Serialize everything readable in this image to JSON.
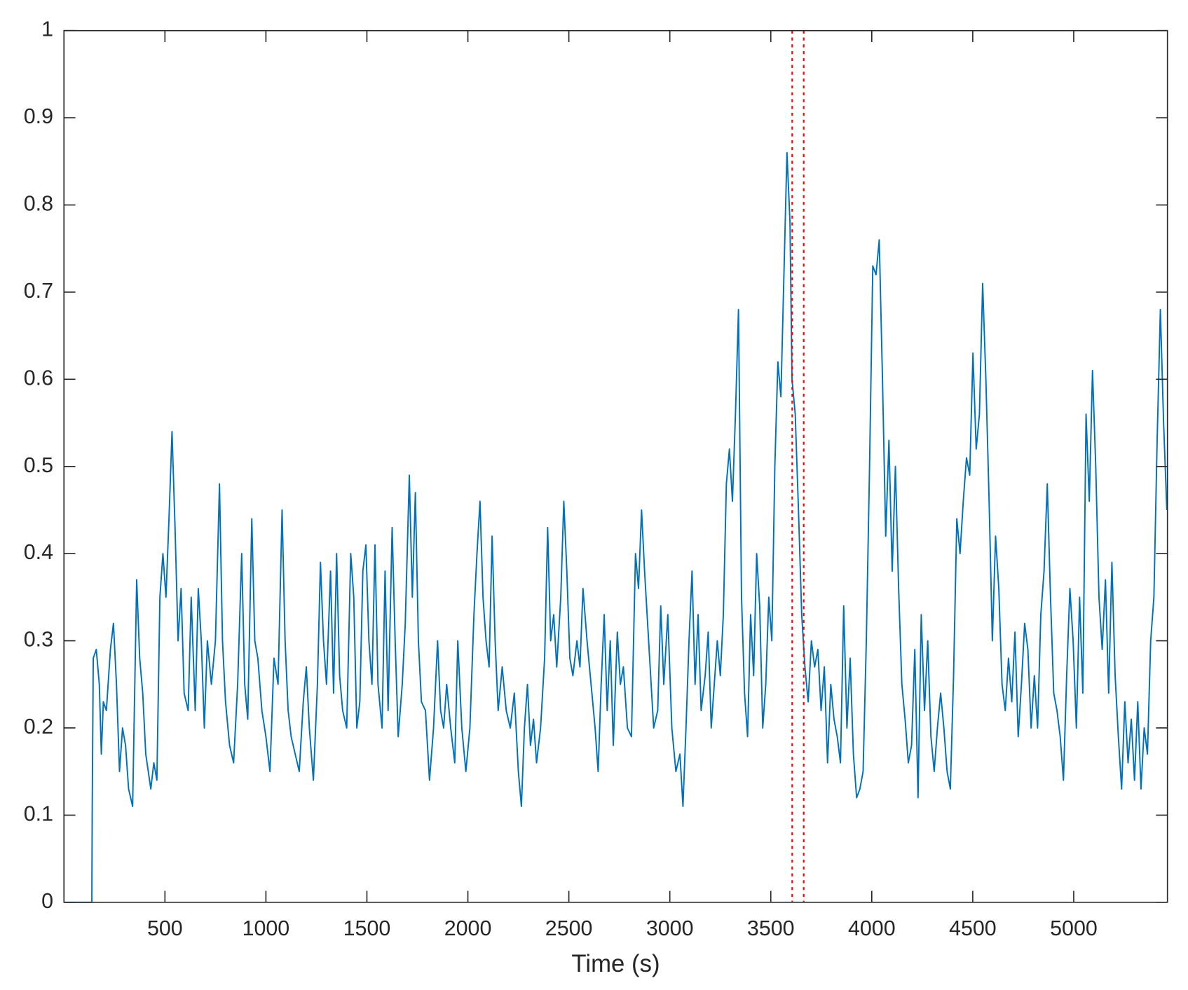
{
  "chart_data": {
    "type": "line",
    "xlabel": "Time (s)",
    "x": [
      0,
      138,
      140,
      145,
      160,
      175,
      185,
      195,
      210,
      230,
      245,
      260,
      275,
      290,
      305,
      320,
      340,
      360,
      375,
      390,
      405,
      430,
      445,
      460,
      475,
      490,
      505,
      520,
      535,
      550,
      565,
      580,
      595,
      615,
      630,
      650,
      665,
      680,
      695,
      710,
      730,
      750,
      770,
      785,
      800,
      820,
      840,
      860,
      880,
      895,
      910,
      930,
      945,
      960,
      980,
      1000,
      1020,
      1040,
      1060,
      1080,
      1095,
      1110,
      1125,
      1145,
      1165,
      1185,
      1200,
      1215,
      1235,
      1255,
      1270,
      1285,
      1300,
      1320,
      1335,
      1350,
      1365,
      1380,
      1400,
      1420,
      1435,
      1450,
      1465,
      1480,
      1495,
      1510,
      1525,
      1540,
      1555,
      1575,
      1590,
      1605,
      1625,
      1640,
      1655,
      1675,
      1690,
      1710,
      1725,
      1740,
      1755,
      1770,
      1790,
      1810,
      1830,
      1850,
      1865,
      1880,
      1895,
      1915,
      1935,
      1950,
      1970,
      1990,
      2010,
      2030,
      2045,
      2060,
      2075,
      2090,
      2105,
      2120,
      2135,
      2150,
      2170,
      2190,
      2210,
      2230,
      2250,
      2265,
      2280,
      2295,
      2310,
      2325,
      2340,
      2360,
      2380,
      2395,
      2410,
      2425,
      2440,
      2460,
      2475,
      2490,
      2505,
      2520,
      2540,
      2555,
      2570,
      2590,
      2610,
      2630,
      2645,
      2660,
      2675,
      2690,
      2705,
      2720,
      2740,
      2755,
      2770,
      2790,
      2810,
      2830,
      2845,
      2860,
      2875,
      2890,
      2905,
      2920,
      2940,
      2955,
      2970,
      2990,
      3010,
      3030,
      3050,
      3065,
      3080,
      3095,
      3110,
      3125,
      3140,
      3155,
      3175,
      3190,
      3205,
      3220,
      3235,
      3250,
      3265,
      3280,
      3295,
      3310,
      3325,
      3340,
      3355,
      3370,
      3385,
      3400,
      3415,
      3430,
      3445,
      3460,
      3475,
      3490,
      3505,
      3520,
      3535,
      3550,
      3565,
      3580,
      3595,
      3605,
      3621,
      3637,
      3653,
      3669,
      3685,
      3701,
      3717,
      3733,
      3749,
      3765,
      3781,
      3797,
      3813,
      3829,
      3845,
      3861,
      3877,
      3893,
      3909,
      3925,
      3941,
      3957,
      3973,
      3989,
      4005,
      4021,
      4037,
      4053,
      4069,
      4085,
      4101,
      4117,
      4133,
      4149,
      4165,
      4181,
      4197,
      4213,
      4229,
      4245,
      4261,
      4277,
      4293,
      4309,
      4325,
      4341,
      4357,
      4373,
      4389,
      4405,
      4421,
      4437,
      4453,
      4469,
      4485,
      4501,
      4517,
      4533,
      4549,
      4565,
      4581,
      4597,
      4613,
      4629,
      4645,
      4661,
      4677,
      4693,
      4709,
      4725,
      4741,
      4757,
      4773,
      4789,
      4805,
      4821,
      4837,
      4853,
      4869,
      4885,
      4901,
      4917,
      4933,
      4949,
      4965,
      4981,
      4997,
      5013,
      5029,
      5045,
      5061,
      5077,
      5093,
      5109,
      5125,
      5141,
      5157,
      5173,
      5189,
      5205,
      5221,
      5237,
      5253,
      5269,
      5285,
      5301,
      5317,
      5333,
      5349,
      5365,
      5381,
      5397,
      5413,
      5429,
      5445,
      5461
    ],
    "series": [
      {
        "color": "#0072bd",
        "values": [
          0,
          0,
          0.11,
          0.28,
          0.29,
          0.25,
          0.17,
          0.23,
          0.22,
          0.29,
          0.32,
          0.25,
          0.15,
          0.2,
          0.18,
          0.13,
          0.11,
          0.37,
          0.28,
          0.24,
          0.17,
          0.13,
          0.16,
          0.14,
          0.35,
          0.4,
          0.35,
          0.44,
          0.54,
          0.43,
          0.3,
          0.36,
          0.24,
          0.22,
          0.35,
          0.22,
          0.36,
          0.3,
          0.2,
          0.3,
          0.25,
          0.3,
          0.48,
          0.3,
          0.23,
          0.18,
          0.16,
          0.25,
          0.4,
          0.25,
          0.21,
          0.44,
          0.3,
          0.28,
          0.22,
          0.19,
          0.15,
          0.28,
          0.25,
          0.45,
          0.3,
          0.22,
          0.19,
          0.17,
          0.15,
          0.23,
          0.27,
          0.2,
          0.14,
          0.25,
          0.39,
          0.3,
          0.25,
          0.38,
          0.24,
          0.4,
          0.26,
          0.22,
          0.2,
          0.4,
          0.35,
          0.2,
          0.23,
          0.38,
          0.41,
          0.3,
          0.25,
          0.41,
          0.25,
          0.2,
          0.38,
          0.22,
          0.43,
          0.3,
          0.19,
          0.25,
          0.32,
          0.49,
          0.35,
          0.47,
          0.3,
          0.23,
          0.22,
          0.14,
          0.2,
          0.3,
          0.22,
          0.2,
          0.25,
          0.2,
          0.16,
          0.3,
          0.2,
          0.15,
          0.2,
          0.33,
          0.4,
          0.46,
          0.35,
          0.3,
          0.27,
          0.42,
          0.3,
          0.22,
          0.27,
          0.22,
          0.2,
          0.24,
          0.15,
          0.11,
          0.2,
          0.25,
          0.18,
          0.21,
          0.16,
          0.2,
          0.28,
          0.43,
          0.3,
          0.33,
          0.27,
          0.35,
          0.46,
          0.38,
          0.28,
          0.26,
          0.3,
          0.27,
          0.36,
          0.3,
          0.25,
          0.2,
          0.15,
          0.25,
          0.33,
          0.22,
          0.3,
          0.18,
          0.31,
          0.25,
          0.27,
          0.2,
          0.19,
          0.4,
          0.36,
          0.45,
          0.38,
          0.32,
          0.26,
          0.2,
          0.22,
          0.34,
          0.25,
          0.33,
          0.2,
          0.15,
          0.17,
          0.11,
          0.2,
          0.3,
          0.38,
          0.25,
          0.33,
          0.22,
          0.26,
          0.31,
          0.2,
          0.25,
          0.3,
          0.26,
          0.33,
          0.48,
          0.52,
          0.46,
          0.56,
          0.68,
          0.35,
          0.24,
          0.19,
          0.33,
          0.26,
          0.4,
          0.34,
          0.2,
          0.25,
          0.35,
          0.3,
          0.5,
          0.62,
          0.58,
          0.72,
          0.86,
          0.78,
          0.6,
          0.56,
          0.45,
          0.33,
          0.27,
          0.23,
          0.3,
          0.27,
          0.29,
          0.22,
          0.27,
          0.16,
          0.25,
          0.21,
          0.19,
          0.16,
          0.34,
          0.2,
          0.28,
          0.17,
          0.12,
          0.13,
          0.15,
          0.3,
          0.5,
          0.73,
          0.72,
          0.76,
          0.6,
          0.42,
          0.53,
          0.38,
          0.5,
          0.36,
          0.25,
          0.21,
          0.16,
          0.18,
          0.29,
          0.12,
          0.33,
          0.22,
          0.3,
          0.19,
          0.15,
          0.2,
          0.24,
          0.2,
          0.15,
          0.13,
          0.26,
          0.44,
          0.4,
          0.46,
          0.51,
          0.49,
          0.63,
          0.52,
          0.56,
          0.71,
          0.6,
          0.46,
          0.3,
          0.42,
          0.36,
          0.25,
          0.22,
          0.28,
          0.23,
          0.31,
          0.19,
          0.25,
          0.32,
          0.29,
          0.2,
          0.26,
          0.2,
          0.33,
          0.38,
          0.48,
          0.35,
          0.24,
          0.22,
          0.19,
          0.14,
          0.26,
          0.36,
          0.3,
          0.2,
          0.35,
          0.24,
          0.56,
          0.46,
          0.61,
          0.5,
          0.35,
          0.29,
          0.37,
          0.24,
          0.39,
          0.26,
          0.19,
          0.13,
          0.23,
          0.16,
          0.21,
          0.14,
          0.23,
          0.13,
          0.2,
          0.17,
          0.3,
          0.35,
          0.53,
          0.68,
          0.55,
          0.45
        ]
      }
    ],
    "reference_lines": {
      "x": [
        3606,
        3663
      ],
      "color": "#ff0000",
      "style": "dotted"
    },
    "xlim": [
      0,
      5464
    ],
    "xticks": [
      500,
      1000,
      1500,
      2000,
      2500,
      3000,
      3500,
      4000,
      4500,
      5000
    ],
    "ylim": [
      0,
      1
    ],
    "yticks": [
      0,
      0.1,
      0.2,
      0.3,
      0.4,
      0.5,
      0.6,
      0.7,
      0.8,
      0.9,
      1
    ],
    "grid": false
  }
}
